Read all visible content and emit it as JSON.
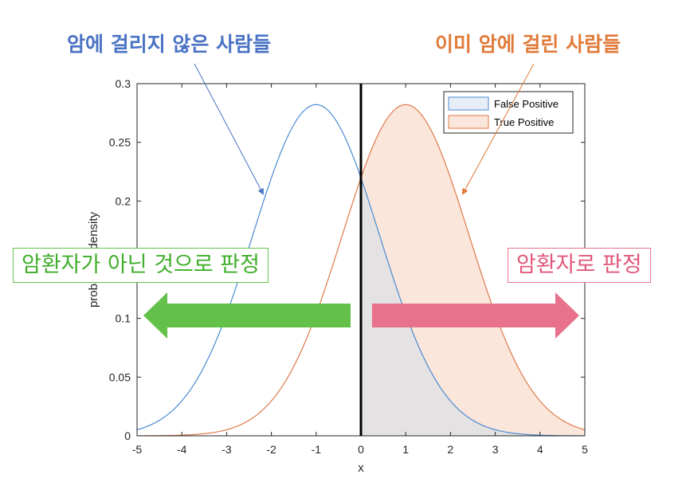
{
  "annotations": {
    "not_cancer_title": "암에 걸리지 않은 사람들",
    "cancer_title": "이미 암에 걸린 사람들",
    "negative_box": "암환자가 아닌 것으로 판정",
    "positive_box": "암환자로 판정"
  },
  "colors": {
    "blue_curve": "#4a8bd0",
    "orange_curve": "#dd7a4a",
    "blue_title": "#4a73c4",
    "orange_title": "#e07b39",
    "green": "#63c14a",
    "pink": "#e8728c",
    "fp_fill": "#dfe0e3",
    "tp_fill": "#fbe6dc"
  },
  "chart_data": {
    "type": "area",
    "title": "",
    "xlabel": "x",
    "ylabel": "probability density",
    "xlim": [
      -5,
      5
    ],
    "ylim": [
      0,
      0.3
    ],
    "xticks": [
      "-5",
      "-4",
      "-3",
      "-2",
      "-1",
      "0",
      "1",
      "2",
      "3",
      "4",
      "5"
    ],
    "yticks": [
      "0",
      "0.05",
      "0.1",
      "0.15",
      "0.2",
      "0.25",
      "0.3"
    ],
    "threshold": 0,
    "series": [
      {
        "mean": -1,
        "sd": 1.414,
        "color": "blue_curve"
      },
      {
        "mean": 1,
        "sd": 1.414,
        "color": "orange_curve"
      }
    ],
    "legend": {
      "position": "top-right",
      "entries": [
        "False Positive",
        "True Positive"
      ]
    }
  }
}
